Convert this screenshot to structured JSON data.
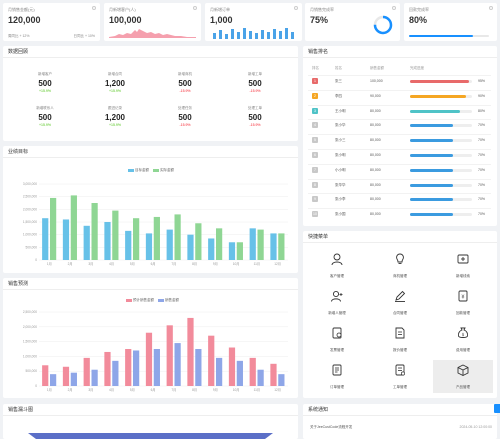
{
  "stats": [
    {
      "label": "月销售金额(元)",
      "value": "120,000",
      "sub_left": "周同比 + 12%",
      "sub_right": "日同比 + 10%"
    },
    {
      "label": "月新增客户(人)",
      "value": "100,000"
    },
    {
      "label": "月新增订单",
      "value": "1,000"
    },
    {
      "label": "月销售完成率",
      "value": "75%",
      "progress": 0.75
    },
    {
      "label": "回款完成率",
      "value": "80%",
      "progress": 0.8
    }
  ],
  "data_overview": {
    "title": "数据回顾",
    "items": [
      {
        "label": "新增客户",
        "value": "500",
        "pct": "+15.9%",
        "dir": "up"
      },
      {
        "label": "新增合同",
        "value": "1,200",
        "pct": "+15.9%",
        "dir": "up"
      },
      {
        "label": "新增商机",
        "value": "500",
        "pct": "-15.9%",
        "dir": "down"
      },
      {
        "label": "新增工单",
        "value": "500",
        "pct": "-15.9%",
        "dir": "down"
      },
      {
        "label": "新增联系人",
        "value": "500",
        "pct": "+15.9%",
        "dir": "up"
      },
      {
        "label": "跟进记录",
        "value": "1,200",
        "pct": "+15.9%",
        "dir": "up"
      },
      {
        "label": "处理任务",
        "value": "500",
        "pct": "-15.9%",
        "dir": "down"
      },
      {
        "label": "处理工单",
        "value": "500",
        "pct": "-15.9%",
        "dir": "down"
      }
    ]
  },
  "chart_data": [
    {
      "type": "bar",
      "title": "业绩目标",
      "categories": [
        "1月",
        "2月",
        "3月",
        "4月",
        "5月",
        "6月",
        "7月",
        "8月",
        "9月",
        "10月",
        "11月",
        "12月"
      ],
      "series": [
        {
          "name": "目标金额",
          "color": "#67c1e8",
          "values": [
            1650000,
            1600000,
            1350000,
            1500000,
            1150000,
            1050000,
            1200000,
            1000000,
            850000,
            700000,
            1250000,
            1050000
          ]
        },
        {
          "name": "实际金额",
          "color": "#8fd694",
          "values": [
            2450000,
            2550000,
            2250000,
            1950000,
            1650000,
            1700000,
            1800000,
            1450000,
            1250000,
            700000,
            1200000,
            1050000
          ]
        }
      ],
      "yticks": [
        "3,000,000",
        "2,500,000",
        "2,000,000",
        "1,500,000",
        "1,000,000",
        "500,000",
        "0"
      ],
      "ylim": [
        0,
        3000000
      ],
      "legend": "top-center"
    },
    {
      "type": "bar",
      "title": "销售预测",
      "categories": [
        "1月",
        "2月",
        "3月",
        "4月",
        "5月",
        "6月",
        "7月",
        "8月",
        "9月",
        "10月",
        "11月",
        "12月"
      ],
      "series": [
        {
          "name": "预计销售金额",
          "color": "#f28b9b",
          "values": [
            700000,
            650000,
            950000,
            1150000,
            1250000,
            1800000,
            2050000,
            2300000,
            1700000,
            1300000,
            950000,
            750000
          ]
        },
        {
          "name": "销售金额",
          "color": "#8ea6e8",
          "values": [
            400000,
            450000,
            550000,
            850000,
            1200000,
            1250000,
            1450000,
            1250000,
            950000,
            850000,
            550000,
            400000
          ]
        }
      ],
      "yticks": [
        "2,500,000",
        "2,000,000",
        "1,500,000",
        "1,000,000",
        "500,000",
        "0"
      ],
      "ylim": [
        0,
        2500000
      ],
      "legend": "top-center"
    }
  ],
  "ranking": {
    "title": "销售排名",
    "headers": [
      "排名",
      "姓名",
      "销售金额",
      "完成进度"
    ],
    "rows": [
      {
        "rank": "1",
        "name": "张三",
        "amount": "100,000",
        "progress": 0.95,
        "pct": "95%",
        "color": "#e86a6a"
      },
      {
        "rank": "2",
        "name": "李四",
        "amount": "90,000",
        "progress": 0.9,
        "pct": "90%",
        "color": "#f5a623"
      },
      {
        "rank": "3",
        "name": "王小明",
        "amount": "80,000",
        "progress": 0.8,
        "pct": "80%",
        "color": "#4fc3c7"
      },
      {
        "rank": "4",
        "name": "张小华",
        "amount": "80,000",
        "progress": 0.7,
        "pct": "70%",
        "color": "#3b9be0"
      },
      {
        "rank": "5",
        "name": "张小三",
        "amount": "80,000",
        "progress": 0.7,
        "pct": "70%",
        "color": "#3b9be0"
      },
      {
        "rank": "6",
        "name": "张小明",
        "amount": "80,000",
        "progress": 0.7,
        "pct": "70%",
        "color": "#3b9be0"
      },
      {
        "rank": "7",
        "name": "小小明",
        "amount": "80,000",
        "progress": 0.7,
        "pct": "70%",
        "color": "#3b9be0"
      },
      {
        "rank": "8",
        "name": "张华华",
        "amount": "80,000",
        "progress": 0.7,
        "pct": "70%",
        "color": "#3b9be0"
      },
      {
        "rank": "9",
        "name": "张小李",
        "amount": "80,000",
        "progress": 0.7,
        "pct": "70%",
        "color": "#3b9be0"
      },
      {
        "rank": "10",
        "name": "张小国",
        "amount": "80,000",
        "progress": 0.7,
        "pct": "70%",
        "color": "#3b9be0"
      }
    ]
  },
  "quick": {
    "title": "快捷菜单",
    "items": [
      {
        "label": "客户管理",
        "icon": "user-icon"
      },
      {
        "label": "商机管理",
        "icon": "bulb-icon"
      },
      {
        "label": "新增线索",
        "icon": "plus-card-icon"
      },
      {
        "label": "新增人管理",
        "icon": "user-plus-icon"
      },
      {
        "label": "合同管理",
        "icon": "pen-icon"
      },
      {
        "label": "回款管理",
        "icon": "doc-money-icon"
      },
      {
        "label": "发票管理",
        "icon": "invoice-icon"
      },
      {
        "label": "报价管理",
        "icon": "doc-icon"
      },
      {
        "label": "费用管理",
        "icon": "money-bag-icon"
      },
      {
        "label": "订单管理",
        "icon": "order-icon"
      },
      {
        "label": "工单管理",
        "icon": "ticket-icon"
      },
      {
        "label": "产品管理",
        "icon": "box-icon"
      }
    ]
  },
  "funnel": {
    "title": "销售漏斗图"
  },
  "notice": {
    "title": "系统通知",
    "items": [
      {
        "text": "关于JeeCustCode流程开发",
        "date": "2024-05-10 12:00:00"
      }
    ]
  }
}
